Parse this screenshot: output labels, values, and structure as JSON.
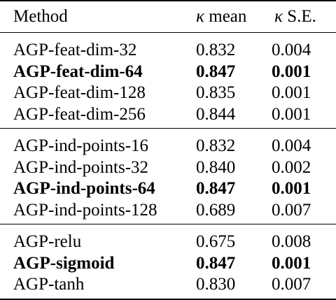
{
  "header": {
    "method": "Method",
    "kappa_symbol": "κ",
    "mean_label": " mean",
    "se_label": " S.E."
  },
  "groups": [
    {
      "rows": [
        {
          "method": "AGP-feat-dim-32",
          "mean": "0.832",
          "se": "0.004",
          "bold": false
        },
        {
          "method": "AGP-feat-dim-64",
          "mean": "0.847",
          "se": "0.001",
          "bold": true
        },
        {
          "method": "AGP-feat-dim-128",
          "mean": "0.835",
          "se": "0.001",
          "bold": false
        },
        {
          "method": "AGP-feat-dim-256",
          "mean": "0.844",
          "se": "0.001",
          "bold": false
        }
      ]
    },
    {
      "rows": [
        {
          "method": "AGP-ind-points-16",
          "mean": "0.832",
          "se": "0.004",
          "bold": false
        },
        {
          "method": "AGP-ind-points-32",
          "mean": "0.840",
          "se": "0.002",
          "bold": false
        },
        {
          "method": "AGP-ind-points-64",
          "mean": "0.847",
          "se": "0.001",
          "bold": true
        },
        {
          "method": "AGP-ind-points-128",
          "mean": "0.689",
          "se": "0.007",
          "bold": false
        }
      ]
    },
    {
      "rows": [
        {
          "method": "AGP-relu",
          "mean": "0.675",
          "se": "0.008",
          "bold": false
        },
        {
          "method": "AGP-sigmoid",
          "mean": "0.847",
          "se": "0.001",
          "bold": true
        },
        {
          "method": "AGP-tanh",
          "mean": "0.830",
          "se": "0.007",
          "bold": false
        }
      ]
    }
  ]
}
